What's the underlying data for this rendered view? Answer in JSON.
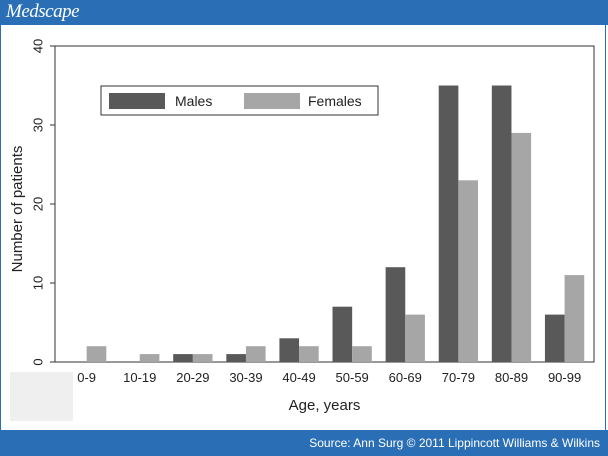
{
  "header": {
    "brand": "Medscape"
  },
  "footer": {
    "source": "Source: Ann Surg © 2011 Lippincott Williams & Wilkins"
  },
  "colors": {
    "header_bg": "#2a6fb5",
    "males": "#595959",
    "females": "#a6a6a6"
  },
  "chart_data": {
    "type": "bar",
    "categories": [
      "0-9",
      "10-19",
      "20-29",
      "30-39",
      "40-49",
      "50-59",
      "60-69",
      "70-79",
      "80-89",
      "90-99"
    ],
    "series": [
      {
        "name": "Males",
        "values": [
          0,
          0,
          1,
          1,
          3,
          7,
          12,
          35,
          35,
          6
        ]
      },
      {
        "name": "Females",
        "values": [
          2,
          1,
          1,
          2,
          2,
          2,
          6,
          23,
          29,
          11
        ]
      }
    ],
    "xlabel": "Age, years",
    "ylabel": "Number of patients",
    "ylim": [
      0,
      40
    ],
    "yticks": [
      0,
      10,
      20,
      30,
      40
    ],
    "legend_position": "top-left",
    "grid": false
  }
}
